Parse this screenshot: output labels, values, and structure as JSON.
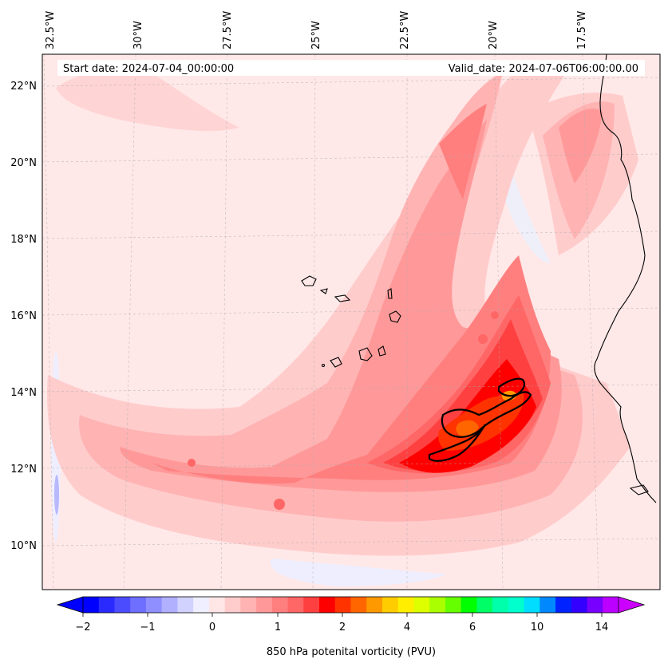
{
  "map": {
    "start_date": "Start date: 2024-07-04_00:00:00",
    "valid_date": "Valid_date: 2024-07-06T06:00:00.00",
    "lon_labels": [
      "32.5°W",
      "30°W",
      "27.5°W",
      "25°W",
      "22.5°W",
      "20°W",
      "17.5°W"
    ],
    "lat_labels": [
      "22°N",
      "20°N",
      "18°N",
      "16°N",
      "14°N",
      "12°N",
      "10°N"
    ],
    "field": "850 hPa potential vorticity",
    "region": "Cabo Verde islands and West African coast"
  },
  "colorbar": {
    "label": "850 hPa potenital vorticity (PVU)",
    "tick_labels": [
      "−2",
      "−1",
      "0",
      "1",
      "2",
      "4",
      "6",
      "10",
      "14"
    ],
    "colors": [
      "#0000ff",
      "#2a2aff",
      "#4c4cff",
      "#6f6fff",
      "#8f8fff",
      "#b0b0ff",
      "#d2d2ff",
      "#efefff",
      "#ffe6e6",
      "#ffcccc",
      "#ffb3b3",
      "#ff9999",
      "#ff7f7f",
      "#ff6666",
      "#ff4040",
      "#ff0000",
      "#ff3300",
      "#ff6600",
      "#ff9900",
      "#ffcc00",
      "#ffee00",
      "#ddff00",
      "#aaff00",
      "#66ff00",
      "#00ff00",
      "#00ff66",
      "#00ffaa",
      "#00ffcc",
      "#00ddff",
      "#0088ff",
      "#0022ff",
      "#3300ff",
      "#7700ff",
      "#bb00ff"
    ]
  }
}
